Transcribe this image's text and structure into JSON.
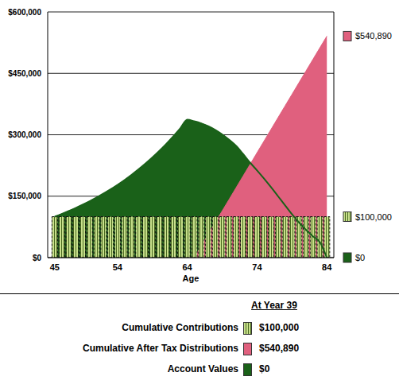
{
  "chart_data": {
    "type": "area",
    "x_label": "Age",
    "x": [
      45,
      46,
      47,
      48,
      49,
      50,
      51,
      52,
      53,
      54,
      55,
      56,
      57,
      58,
      59,
      60,
      61,
      62,
      63,
      64,
      65,
      66,
      67,
      68,
      69,
      70,
      71,
      72,
      73,
      74,
      75,
      76,
      77,
      78,
      79,
      80,
      81,
      82,
      83,
      84
    ],
    "xlim": [
      44,
      85
    ],
    "xticks": [
      45,
      54,
      64,
      74,
      84
    ],
    "ylim": [
      0,
      600000
    ],
    "yticks": [
      {
        "value": 0,
        "label": "$0"
      },
      {
        "value": 150000,
        "label": "$150,000"
      },
      {
        "value": 300000,
        "label": "$300,000"
      },
      {
        "value": 450000,
        "label": "$450,000"
      },
      {
        "value": 600000,
        "label": "$600,000"
      }
    ],
    "y2lim": [
      0,
      600000
    ],
    "y2ticks": [
      {
        "value": 540890,
        "label": "$540,890"
      },
      {
        "value": 100000,
        "label": "$100,000"
      },
      {
        "value": 0,
        "label": "$0"
      }
    ],
    "grid": true,
    "legend": "bottom",
    "annotations": [
      "At Year 39"
    ],
    "series": [
      {
        "name": "Cumulative Contributions",
        "type": "bar",
        "color": "#c8e08c",
        "values": [
          100000,
          100000,
          100000,
          100000,
          100000,
          100000,
          100000,
          100000,
          100000,
          100000,
          100000,
          100000,
          100000,
          100000,
          100000,
          100000,
          100000,
          100000,
          100000,
          100000,
          100000,
          100000,
          100000,
          100000,
          100000,
          100000,
          100000,
          100000,
          100000,
          100000,
          100000,
          100000,
          100000,
          100000,
          100000,
          100000,
          100000,
          100000,
          100000,
          100000
        ]
      },
      {
        "name": "Cumulative After Tax Distributions",
        "type": "area",
        "color": "#e0607e",
        "values": [
          null,
          null,
          null,
          null,
          null,
          null,
          null,
          null,
          null,
          null,
          null,
          null,
          null,
          null,
          null,
          null,
          null,
          null,
          null,
          null,
          0,
          28500,
          56900,
          85400,
          113900,
          142300,
          170800,
          199300,
          227700,
          256200,
          284700,
          313100,
          341600,
          370100,
          398500,
          427000,
          455500,
          483900,
          512400,
          540890
        ]
      },
      {
        "name": "Account Values",
        "type": "area",
        "color": "#1a6119",
        "values": [
          100000,
          106600,
          113600,
          121100,
          129100,
          137600,
          146700,
          156400,
          166700,
          177700,
          189400,
          201900,
          215300,
          229500,
          244600,
          260700,
          277900,
          296300,
          315800,
          336700,
          333000,
          328000,
          321000,
          312000,
          301000,
          288000,
          273000,
          253000,
          232000,
          213000,
          193000,
          172000,
          150000,
          128000,
          106000,
          86000,
          68000,
          52000,
          38000,
          0
        ]
      }
    ]
  }
}
